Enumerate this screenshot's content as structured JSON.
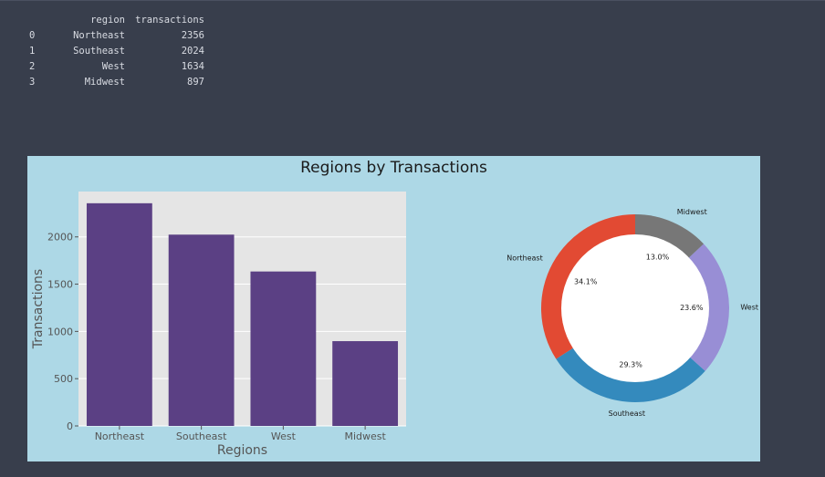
{
  "dataframe": {
    "columns": [
      "region",
      "transactions"
    ],
    "rows": [
      {
        "index": "0",
        "region": "Northeast",
        "transactions": "2356"
      },
      {
        "index": "1",
        "region": "Southeast",
        "transactions": "2024"
      },
      {
        "index": "2",
        "region": "West",
        "transactions": "1634"
      },
      {
        "index": "3",
        "region": "Midwest",
        "transactions": "897"
      }
    ]
  },
  "figure": {
    "title": "Regions by Transactions",
    "background": "#add8e6"
  },
  "chart_data": [
    {
      "type": "bar",
      "categories": [
        "Northeast",
        "Southeast",
        "West",
        "Midwest"
      ],
      "values": [
        2356,
        2024,
        1634,
        897
      ],
      "xlabel": "Regions",
      "ylabel": "Transactions",
      "ylim": [
        0,
        2480
      ],
      "yticks": [
        0,
        500,
        1000,
        1500,
        2000
      ],
      "grid": true,
      "bar_color": "#5b4084",
      "plot_background": "#e5e5e5"
    },
    {
      "type": "pie",
      "style": "donut",
      "labels": [
        "Northeast",
        "Southeast",
        "West",
        "Midwest"
      ],
      "values": [
        2356,
        2024,
        1634,
        897
      ],
      "percent_labels": [
        "34.1%",
        "29.3%",
        "23.6%",
        "13.0%"
      ],
      "colors": [
        "#e24a33",
        "#348abd",
        "#988ed5",
        "#777777"
      ],
      "hole_color": "#ffffff"
    }
  ]
}
